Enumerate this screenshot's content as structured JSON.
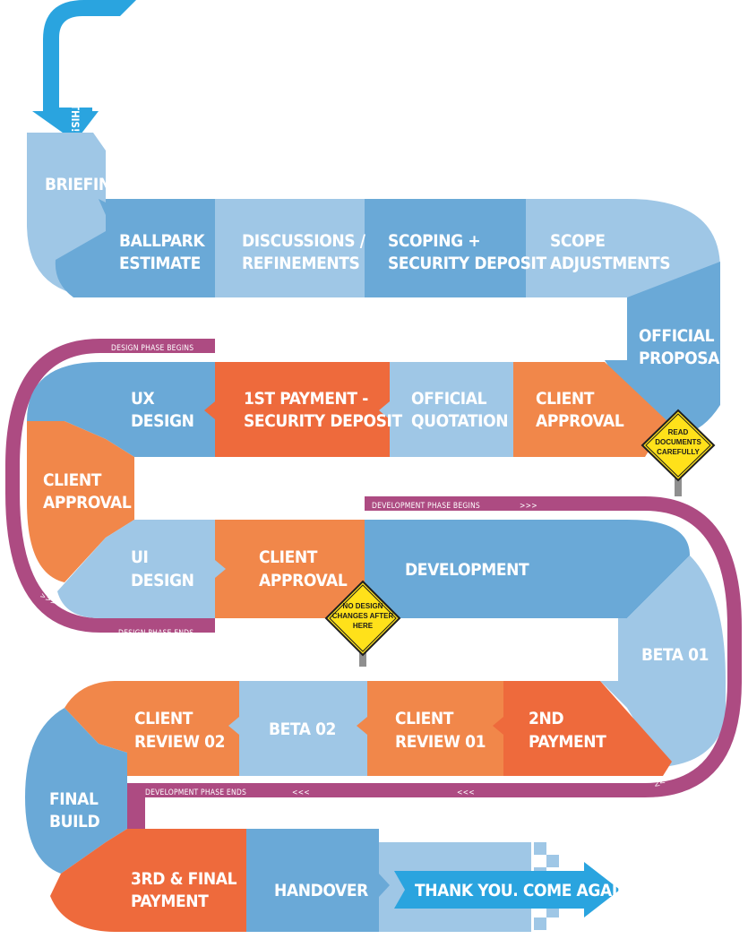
{
  "colors": {
    "light_blue": "#9fc7e6",
    "mid_blue": "#6aa9d7",
    "bright_blue": "#2aa4df",
    "orange": "#f1874a",
    "red_orange": "#ee6a3c",
    "magenta": "#ad4b82",
    "sign_yellow": "#ffe11a"
  },
  "start_arrow": {
    "text": "LET'S DO THIS!"
  },
  "steps": {
    "briefing": "BRIEFING",
    "ballpark": [
      "BALLPARK",
      "ESTIMATE"
    ],
    "discussions": [
      "DISCUSSIONS /",
      "REFINEMENTS"
    ],
    "scoping": [
      "SCOPING +",
      "SECURITY DEPOSIT"
    ],
    "scope_adj": [
      "SCOPE",
      "ADJUSTMENTS"
    ],
    "official_proposal": [
      "OFFICIAL",
      "PROPOSAL"
    ],
    "client_approval_1": [
      "CLIENT",
      "APPROVAL"
    ],
    "official_quotation": [
      "OFFICIAL",
      "QUOTATION"
    ],
    "first_payment": [
      "1ST PAYMENT -",
      "SECURITY DEPOSIT"
    ],
    "ux_design": [
      "UX",
      "DESIGN"
    ],
    "client_approval_2": [
      "CLIENT",
      "APPROVAL"
    ],
    "ui_design": [
      "UI",
      "DESIGN"
    ],
    "client_approval_3": [
      "CLIENT",
      "APPROVAL"
    ],
    "development": "DEVELOPMENT",
    "beta_01": "BETA 01",
    "second_payment": [
      "2ND",
      "PAYMENT"
    ],
    "client_review_01": [
      "CLIENT",
      "REVIEW 01"
    ],
    "beta_02": "BETA 02",
    "client_review_02": [
      "CLIENT",
      "REVIEW 02"
    ],
    "final_build": [
      "FINAL",
      "BUILD"
    ],
    "third_payment": [
      "3RD & FINAL",
      "PAYMENT"
    ],
    "handover": "HANDOVER",
    "thank_you": "THANK YOU. COME AGAIN"
  },
  "phase_labels": {
    "design_begins": "DESIGN PHASE BEGINS",
    "design_ends": "DESIGN PHASE ENDS",
    "dev_begins": "DEVELOPMENT PHASE BEGINS",
    "dev_ends": "DEVELOPMENT PHASE ENDS"
  },
  "chevrons": {
    "forward": ">>>",
    "back": "<<<"
  },
  "signs": {
    "read_docs": [
      "READ",
      "DOCUMENTS",
      "CAREFULLY"
    ],
    "no_design": [
      "NO DESIGN",
      "CHANGES AFTER",
      "HERE"
    ]
  }
}
